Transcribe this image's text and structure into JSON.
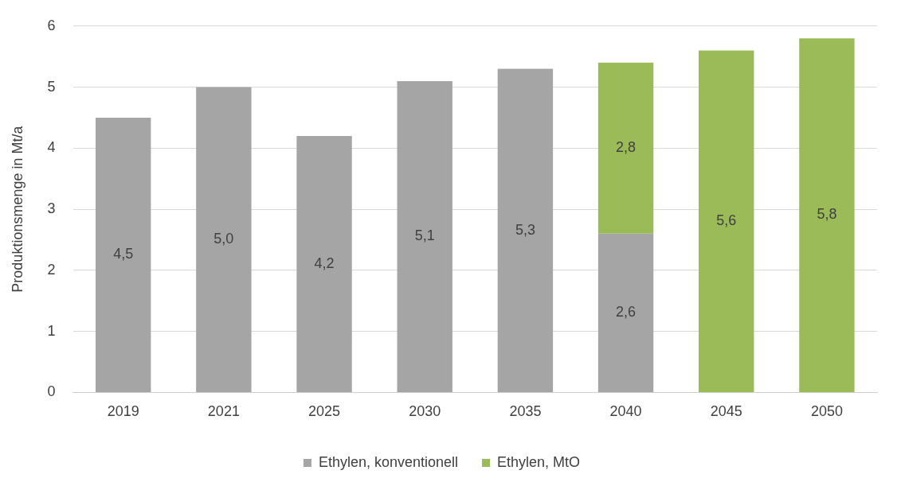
{
  "chart_data": {
    "type": "bar",
    "ylabel": "Produktionsmenge in Mt/a",
    "categories": [
      "2019",
      "2021",
      "2025",
      "2030",
      "2035",
      "2040",
      "2045",
      "2050"
    ],
    "stacked": true,
    "series": [
      {
        "name": "Ethylen, konventionell",
        "color": "#a5a5a5",
        "values": [
          4.5,
          5.0,
          4.2,
          5.1,
          5.3,
          2.6,
          null,
          null
        ],
        "value_labels": [
          "4,5",
          "5,0",
          "4,2",
          "5,1",
          "5,3",
          "2,6",
          null,
          null
        ]
      },
      {
        "name": "Ethylen, MtO",
        "color": "#9bbb59",
        "values": [
          null,
          null,
          null,
          null,
          null,
          2.8,
          5.6,
          5.8
        ],
        "value_labels": [
          null,
          null,
          null,
          null,
          null,
          "2,8",
          "5,6",
          "5,8"
        ]
      }
    ],
    "ylim": [
      0,
      6
    ],
    "yticks": [
      0,
      1,
      2,
      3,
      4,
      5,
      6
    ],
    "grid": "y",
    "legend": "bottom"
  }
}
